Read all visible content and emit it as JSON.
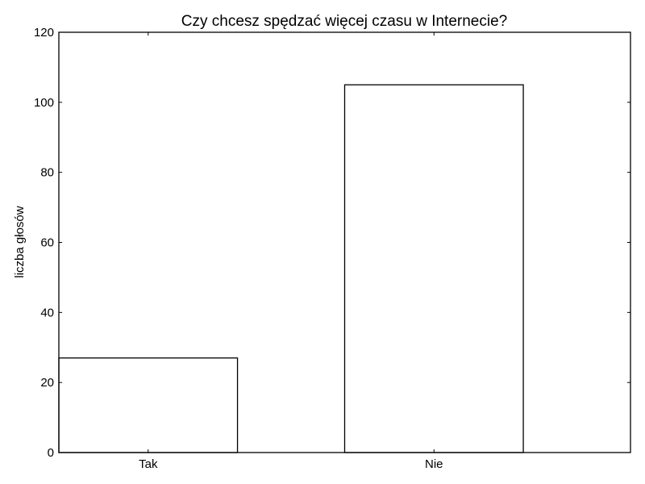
{
  "chart_data": {
    "type": "bar",
    "title": "Czy chcesz spędzać więcej czasu w Internecie?",
    "xlabel": "",
    "ylabel": "liczba głosów",
    "categories": [
      "Tak",
      "Nie"
    ],
    "values": [
      27,
      105
    ],
    "ylim": [
      0,
      120
    ],
    "yticks": [
      0,
      20,
      40,
      60,
      80,
      100,
      120
    ],
    "grid": false,
    "legend": "none",
    "colors": {
      "bar_fill": "#ffffff",
      "bar_edge": "#000000",
      "frame": "#000000",
      "text": "#000000"
    }
  }
}
